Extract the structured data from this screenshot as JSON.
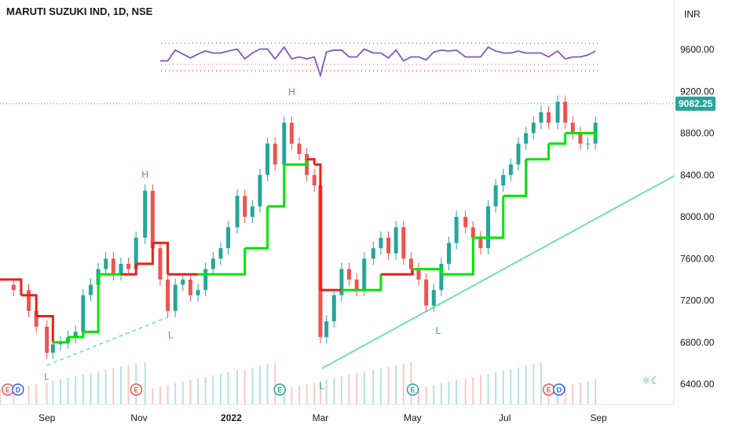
{
  "chart_data": {
    "type": "line",
    "title": "MARUTI SUZUKI IND, 1D, NSE",
    "currency": "INR",
    "y_axis": {
      "ticks": [
        "9600.00",
        "9200.00",
        "8800.00",
        "8400.00",
        "8000.00",
        "7600.00",
        "7200.00",
        "6800.00",
        "6400.00"
      ],
      "ylim": [
        6300,
        9950
      ]
    },
    "x_axis": {
      "ticks": [
        "Sep",
        "Nov",
        "2022",
        "Mar",
        "May",
        "Jul",
        "Sep"
      ]
    },
    "last_price": "9082.25",
    "colors": {
      "up": "#26a69a",
      "down": "#ef5350",
      "trend_up": "#00e600",
      "trend_down": "#e8211b",
      "rsi": "#7e57c2",
      "line": "#6ee0b5",
      "label_bg": "#26a69a"
    },
    "series": [
      {
        "role": "close",
        "x": [
          "2021-08-01",
          "2021-08-10",
          "2021-08-20",
          "2021-08-25",
          "2021-09-01",
          "2021-09-05",
          "2021-09-10",
          "2021-09-15",
          "2021-09-20",
          "2021-09-25",
          "2021-09-30",
          "2021-10-05",
          "2021-10-10",
          "2021-10-15",
          "2021-10-20",
          "2021-10-25",
          "2021-10-30",
          "2021-11-05",
          "2021-11-10",
          "2021-11-15",
          "2021-11-20",
          "2021-11-25",
          "2021-11-30",
          "2021-12-05",
          "2021-12-10",
          "2021-12-15",
          "2021-12-20",
          "2021-12-25",
          "2021-12-30",
          "2022-01-05",
          "2022-01-10",
          "2022-01-15",
          "2022-01-20",
          "2022-01-25",
          "2022-01-30",
          "2022-02-05",
          "2022-02-10",
          "2022-02-15",
          "2022-02-20",
          "2022-02-25",
          "2022-03-01",
          "2022-03-05",
          "2022-03-10",
          "2022-03-15",
          "2022-03-20",
          "2022-03-25",
          "2022-03-30",
          "2022-04-05",
          "2022-04-10",
          "2022-04-15",
          "2022-04-20",
          "2022-04-25",
          "2022-04-30",
          "2022-05-05",
          "2022-05-10",
          "2022-05-15",
          "2022-05-20",
          "2022-05-25",
          "2022-05-30",
          "2022-06-05",
          "2022-06-10",
          "2022-06-15",
          "2022-06-20",
          "2022-06-25",
          "2022-06-30",
          "2022-07-05",
          "2022-07-10",
          "2022-07-15",
          "2022-07-20",
          "2022-07-25",
          "2022-07-30",
          "2022-08-05",
          "2022-08-10",
          "2022-08-15",
          "2022-08-20",
          "2022-08-25",
          "2022-08-30"
        ],
        "values": [
          7350,
          7300,
          7100,
          6950,
          6700,
          6780,
          6800,
          6850,
          6900,
          7250,
          7350,
          7500,
          7600,
          7450,
          7550,
          7500,
          7800,
          8250,
          7700,
          7400,
          7100,
          7350,
          7400,
          7250,
          7300,
          7500,
          7600,
          7700,
          7900,
          8200,
          8000,
          8100,
          8400,
          8700,
          8500,
          8900,
          8700,
          8600,
          8400,
          8300,
          6850,
          7000,
          7250,
          7500,
          7400,
          7300,
          7600,
          7700,
          7800,
          7650,
          7900,
          7600,
          7500,
          7400,
          7150,
          7300,
          7550,
          7750,
          8000,
          7900,
          7800,
          7700,
          8100,
          8300,
          8400,
          8500,
          8700,
          8800,
          8900,
          9000,
          8900,
          9100,
          8900,
          8800,
          8700,
          8700,
          8900
        ]
      },
      {
        "role": "supertrend",
        "x": [
          "2021-08-01",
          "2021-08-15",
          "2021-08-25",
          "2021-09-05",
          "2021-09-15",
          "2021-09-25",
          "2021-10-05",
          "2021-10-20",
          "2021-10-30",
          "2021-11-10",
          "2021-11-20",
          "2021-12-10",
          "2021-12-25",
          "2022-01-10",
          "2022-01-25",
          "2022-02-05",
          "2022-02-20",
          "2022-02-25",
          "2022-03-01",
          "2022-03-15",
          "2022-04-10",
          "2022-05-01",
          "2022-05-20",
          "2022-06-10",
          "2022-06-30",
          "2022-07-15",
          "2022-07-30",
          "2022-08-10",
          "2022-08-30"
        ],
        "values": [
          7400,
          7250,
          7050,
          6800,
          6850,
          6900,
          7450,
          7450,
          7550,
          7750,
          7450,
          7450,
          7450,
          7700,
          8100,
          8500,
          8550,
          8500,
          7300,
          7300,
          7450,
          7500,
          7450,
          7800,
          8200,
          8550,
          8700,
          8800,
          8750
        ],
        "direction": [
          "down",
          "down",
          "down",
          "down",
          "up",
          "up",
          "up",
          "up",
          "down",
          "down",
          "down",
          "down",
          "up",
          "up",
          "up",
          "up",
          "up",
          "down",
          "down",
          "down",
          "up",
          "down",
          "up",
          "up",
          "up",
          "up",
          "up",
          "up",
          "up"
        ]
      }
    ],
    "pivots": [
      {
        "label": "H",
        "date": "2021-11-05",
        "value": 8330
      },
      {
        "label": "L",
        "date": "2021-11-22",
        "value": 6960
      },
      {
        "label": "H",
        "date": "2022-02-10",
        "value": 9120
      },
      {
        "label": "L",
        "date": "2021-09-01",
        "value": 6560
      },
      {
        "label": "L",
        "date": "2022-03-02",
        "value": 6470
      },
      {
        "label": "L",
        "date": "2022-05-18",
        "value": 7000
      }
    ],
    "events": [
      {
        "date": "2021-08-03",
        "labels": [
          "E",
          "D"
        ]
      },
      {
        "date": "2021-10-27",
        "labels": [
          "E"
        ]
      },
      {
        "date": "2022-01-30",
        "labels": [
          "E"
        ]
      },
      {
        "date": "2022-04-28",
        "labels": [
          "E"
        ]
      },
      {
        "date": "2022-07-27",
        "labels": [
          "E",
          "D"
        ]
      }
    ]
  },
  "icons": {
    "status": "sun-moon-icon"
  }
}
